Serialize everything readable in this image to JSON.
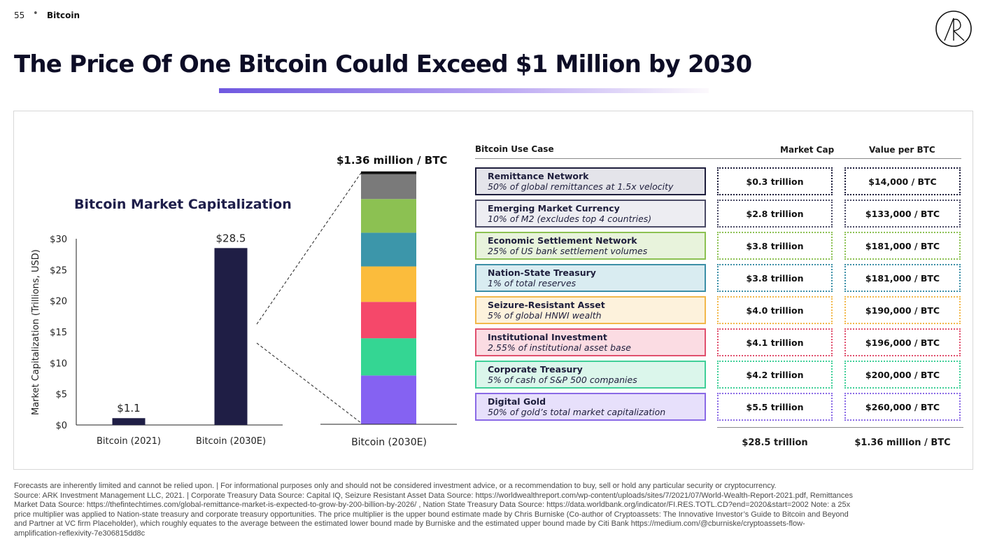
{
  "header": {
    "page_number": "55",
    "separator": "•",
    "section": "Bitcoin"
  },
  "title": "The Price Of One Bitcoin Could Exceed $1 Million by 2030",
  "colors": {
    "navy": "#1f1e45",
    "accent_gradient_start": "#6f58e0",
    "remittance": "#7a7a7a",
    "emerging": "#8cc152",
    "economic": "#3c96aa",
    "nation": "#fbbc3c",
    "seizure": "#f5486a",
    "institutional": "#34d693",
    "corporate": "#6c5ce7",
    "digital_gold": "#8562f2"
  },
  "chart_data": [
    {
      "type": "bar",
      "title": "Bitcoin Market Capitalization",
      "ylabel": "Market Capitalization (Trillions, USD)",
      "categories": [
        "Bitcoin (2021)",
        "Bitcoin (2030E)"
      ],
      "values": [
        1.1,
        28.5
      ],
      "data_labels": [
        "$1.1",
        "$28.5"
      ],
      "ylim": [
        0,
        30
      ],
      "yticks": [
        0,
        5,
        10,
        15,
        20,
        25,
        30
      ],
      "ytick_labels": [
        "$0",
        "$5",
        "$10",
        "$15",
        "$20",
        "$25",
        "$30"
      ]
    },
    {
      "type": "bar",
      "stacked": true,
      "title": "$1.36 million / BTC",
      "categories": [
        "Bitcoin (2030E)"
      ],
      "series": [
        {
          "value": 5.5,
          "color": "#8562f2"
        },
        {
          "value": 4.2,
          "color": "#34d693"
        },
        {
          "value": 4.1,
          "color": "#f5486a"
        },
        {
          "value": 4.0,
          "color": "#fbbc3c"
        },
        {
          "value": 3.8,
          "color": "#3c96aa"
        },
        {
          "value": 3.8,
          "color": "#8cc152"
        },
        {
          "value": 2.8,
          "color": "#7a7a7a"
        },
        {
          "value": 0.3,
          "color": "#111111"
        }
      ]
    },
    {
      "type": "table",
      "columns": [
        "Bitcoin Use Case",
        "Market Cap",
        "Value per BTC"
      ],
      "rows": [
        {
          "name": "Remittance Network",
          "desc": "50% of global remittances at 1.5x velocity",
          "market_cap": "$0.3 trillion",
          "value": "$14,000 / BTC",
          "color": "#1e1e3c",
          "bg": "#e4e4ea"
        },
        {
          "name": "Emerging Market Currency",
          "desc": "10% of M2 (excludes top 4 countries)",
          "market_cap": "$2.8 trillion",
          "value": "$133,000 / BTC",
          "color": "#4b4b66",
          "bg": "#ededf2"
        },
        {
          "name": "Economic Settlement Network",
          "desc": "25% of US bank settlement volumes",
          "market_cap": "$3.8 trillion",
          "value": "$181,000 / BTC",
          "color": "#8cc152",
          "bg": "#e8f3dc"
        },
        {
          "name": "Nation-State Treasury",
          "desc": "1% of total reserves",
          "market_cap": "$3.8 trillion",
          "value": "$181,000 / BTC",
          "color": "#3c8fa7",
          "bg": "#d9ecf1"
        },
        {
          "name": "Seizure-Resistant Asset",
          "desc": "5% of global HNWI wealth",
          "market_cap": "$4.0 trillion",
          "value": "$190,000 / BTC",
          "color": "#f2b84b",
          "bg": "#fdf2dc"
        },
        {
          "name": "Institutional Investment",
          "desc": "2.55% of institutional asset base",
          "market_cap": "$4.1 trillion",
          "value": "$196,000 / BTC",
          "color": "#e0506e",
          "bg": "#fbdce3"
        },
        {
          "name": "Corporate Treasury",
          "desc": "5% of cash of S&P 500 companies",
          "market_cap": "$4.2 trillion",
          "value": "$200,000 / BTC",
          "color": "#3fcf98",
          "bg": "#dbf6eb"
        },
        {
          "name": "Digital Gold",
          "desc": "50% of gold’s total market capitalization",
          "market_cap": "$5.5 trillion",
          "value": "$260,000 / BTC",
          "color": "#8a6ae6",
          "bg": "#e7e0fb"
        }
      ],
      "totals": {
        "market_cap": "$28.5 trillion",
        "value": "$1.36 million / BTC"
      }
    }
  ],
  "footer_lines": [
    "Forecasts are inherently limited and cannot be relied upon. | For informational purposes only and should not be considered investment advice, or a recommendation to buy, sell or hold any particular security or cryptocurrency.",
    "Source: ARK Investment Management LLC, 2021.  |  Corporate Treasury Data Source: Capital IQ, Seizure Resistant Asset Data Source: https://worldwealthreport.com/wp-content/uploads/sites/7/2021/07/World-Wealth-Report-2021.pdf, Remittances",
    "Market Data Source: https://thefintechtimes.com/global-remittance-market-is-expected-to-grow-by-200-billion-by-2026/ , Nation State Treasury Data Source: https://data.worldbank.org/indicator/FI.RES.TOTL.CD?end=2020&start=2002 Note: a 25x",
    "price multiplier was applied to Nation-state treasury and corporate treasury opportunities. The price multiplier is  the upper bound estimate made by Chris Burniske (Co-author of Cryptoassets: The Innovative Investor’s Guide to Bitcoin and Beyond",
    "and Partner at VC firm Placeholder), which roughly equates to the average between the estimated lower bound made by Burniske and the estimated upper bound made by Citi Bank https://medium.com/@cburniske/cryptoassets-flow-",
    "amplification-reflexivity-7e306815dd8c"
  ]
}
